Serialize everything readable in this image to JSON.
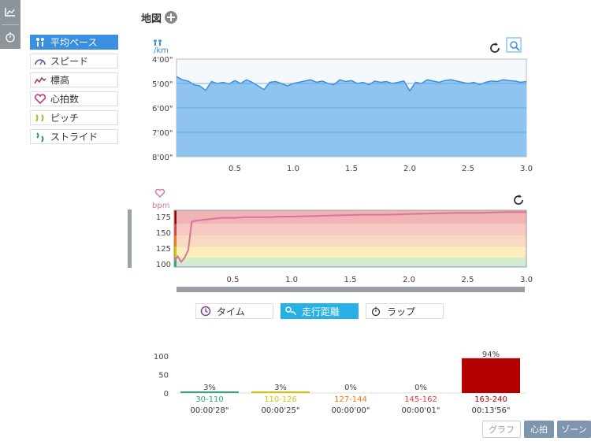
{
  "header": {
    "title": "地図"
  },
  "metrics": [
    {
      "label": "平均ペース",
      "icon": "footprints-icon",
      "active": true
    },
    {
      "label": "スピード",
      "icon": "speedometer-icon",
      "active": false
    },
    {
      "label": "標高",
      "icon": "elevation-icon",
      "active": false
    },
    {
      "label": "心拍数",
      "icon": "heart-icon",
      "active": false
    },
    {
      "label": "ピッチ",
      "icon": "steps-icon",
      "active": false
    },
    {
      "label": "ストライド",
      "icon": "stride-icon",
      "active": false
    }
  ],
  "pace_chart": {
    "unit_top": "/km",
    "y_ticks": [
      "4'00\"",
      "5'00\"",
      "6'00\"",
      "7'00\"",
      "8'00\""
    ],
    "x_ticks": [
      "0.5",
      "1.0",
      "1.5",
      "2.0",
      "2.5",
      "3.0"
    ]
  },
  "hr_chart": {
    "unit": "bpm",
    "y_ticks": [
      "175",
      "150",
      "125",
      "100"
    ],
    "x_ticks": [
      "0.5",
      "1.0",
      "1.5",
      "2.0",
      "2.5",
      "3.0"
    ]
  },
  "xaxis_toggle": [
    {
      "label": "タイム",
      "icon": "clock-icon",
      "active": false
    },
    {
      "label": "走行距離",
      "icon": "distance-icon",
      "active": true
    },
    {
      "label": "ラップ",
      "icon": "stopwatch-icon",
      "active": false
    }
  ],
  "zone_chart": {
    "y_ticks": [
      "100",
      "50",
      "0"
    ]
  },
  "bottom_buttons": {
    "graph": "グラフ",
    "hr": "心拍",
    "zone": "ゾーン"
  },
  "colors": {
    "accent": "#3a8fe0",
    "toggle_active": "#27b0e6",
    "pace_fill": "#8fc3f0",
    "pace_line": "#3d8fdc",
    "hr_line": "#d9739b",
    "zone_bar": "#b20000"
  },
  "chart_data": [
    {
      "type": "area",
      "title": "",
      "ylabel": "/km",
      "xlabel": "",
      "x": [
        0.0,
        0.05,
        0.1,
        0.15,
        0.2,
        0.25,
        0.3,
        0.35,
        0.4,
        0.45,
        0.5,
        0.55,
        0.6,
        0.65,
        0.7,
        0.75,
        0.8,
        0.85,
        0.9,
        0.95,
        1.0,
        1.05,
        1.1,
        1.15,
        1.2,
        1.25,
        1.3,
        1.35,
        1.4,
        1.45,
        1.5,
        1.55,
        1.6,
        1.65,
        1.7,
        1.75,
        1.8,
        1.85,
        1.9,
        1.95,
        2.0,
        2.05,
        2.1,
        2.15,
        2.2,
        2.25,
        2.3,
        2.35,
        2.4,
        2.45,
        2.5,
        2.55,
        2.6,
        2.65,
        2.7,
        2.75,
        2.8,
        2.85,
        2.9,
        2.95,
        3.0
      ],
      "series": [
        {
          "values": [
            4.72,
            4.85,
            4.9,
            5.05,
            5.1,
            5.28,
            4.92,
            5.0,
            4.95,
            5.02,
            4.88,
            5.0,
            4.85,
            4.95,
            5.1,
            5.25,
            4.95,
            4.92,
            5.0,
            5.1,
            5.0,
            4.95,
            4.9,
            4.85,
            4.95,
            4.9,
            5.0,
            5.05,
            4.85,
            4.92,
            4.88,
            5.0,
            4.95,
            5.05,
            4.9,
            4.95,
            4.92,
            5.0,
            4.95,
            4.9,
            5.3,
            4.95,
            5.0,
            4.85,
            4.9,
            4.95,
            4.88,
            4.85,
            4.9,
            4.95,
            5.0,
            4.95,
            5.05,
            4.95,
            4.9,
            4.92,
            4.85,
            4.88,
            4.9,
            4.95,
            4.92
          ]
        }
      ],
      "ylim": [
        "4'00\"",
        "8'00\""
      ],
      "xlim": [
        0,
        3.0
      ]
    },
    {
      "type": "line",
      "title": "",
      "ylabel": "bpm",
      "xlabel": "",
      "x": [
        0.0,
        0.03,
        0.06,
        0.09,
        0.12,
        0.15,
        0.2,
        0.3,
        0.4,
        0.5,
        0.6,
        0.7,
        0.8,
        0.9,
        1.0,
        1.2,
        1.4,
        1.6,
        1.8,
        2.0,
        2.2,
        2.4,
        2.6,
        2.8,
        3.0
      ],
      "series": [
        {
          "values": [
            104,
            112,
            103,
            110,
            122,
            167,
            169,
            171,
            173,
            173,
            174,
            174,
            174,
            175,
            175,
            176,
            177,
            178,
            178,
            179,
            180,
            181,
            181,
            182,
            182
          ]
        }
      ],
      "ylim": [
        95,
        185
      ],
      "xlim": [
        0,
        3.0
      ]
    },
    {
      "type": "bar",
      "title": "",
      "categories": [
        "30-110",
        "110-126",
        "127-144",
        "145-162",
        "163-240"
      ],
      "values": [
        3,
        3,
        0,
        0,
        94
      ],
      "value_labels": [
        "3%",
        "3%",
        "0%",
        "0%",
        "94%"
      ],
      "durations": [
        "00:00'28\"",
        "00:00'25\"",
        "00:00'00\"",
        "00:00'01\"",
        "00:13'56\""
      ],
      "category_colors": [
        "#2aa876",
        "#d6c200",
        "#f07d00",
        "#e23a3a",
        "#b20000"
      ],
      "ylim": [
        0,
        100
      ]
    }
  ]
}
